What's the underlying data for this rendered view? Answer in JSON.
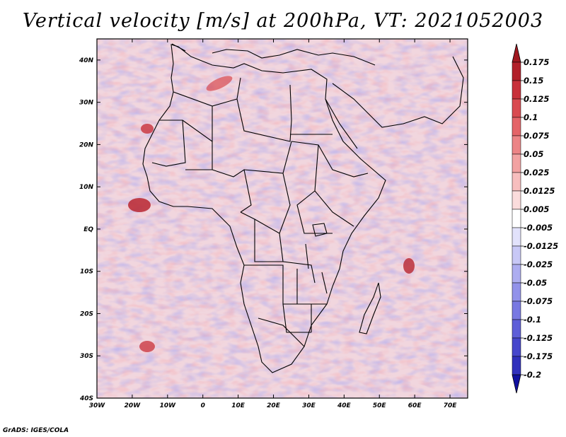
{
  "title": "Vertical velocity [m/s] at 200hPa, VT: 2021052003",
  "credit": "GrADS: IGES/COLA",
  "map": {
    "region": "Africa and surroundings",
    "projection": "lat-lon",
    "lon_range": [
      -30,
      75
    ],
    "lat_range": [
      -40,
      45
    ],
    "lat_ticks": [
      {
        "value": 40,
        "label": "40N"
      },
      {
        "value": 30,
        "label": "30N"
      },
      {
        "value": 20,
        "label": "20N"
      },
      {
        "value": 10,
        "label": "10N"
      },
      {
        "value": 0,
        "label": "EQ"
      },
      {
        "value": -10,
        "label": "10S"
      },
      {
        "value": -20,
        "label": "20S"
      },
      {
        "value": -30,
        "label": "30S"
      },
      {
        "value": -40,
        "label": "40S"
      }
    ],
    "lon_ticks": [
      {
        "value": -30,
        "label": "30W"
      },
      {
        "value": -20,
        "label": "20W"
      },
      {
        "value": -10,
        "label": "10W"
      },
      {
        "value": 0,
        "label": "0"
      },
      {
        "value": 10,
        "label": "10E"
      },
      {
        "value": 20,
        "label": "20E"
      },
      {
        "value": 30,
        "label": "30E"
      },
      {
        "value": 40,
        "label": "40E"
      },
      {
        "value": 50,
        "label": "50E"
      },
      {
        "value": 60,
        "label": "60E"
      },
      {
        "value": 70,
        "label": "70E"
      }
    ]
  },
  "colorbar": {
    "levels": [
      {
        "label": "0.175",
        "color": "#b2202a"
      },
      {
        "label": "0.15",
        "color": "#c8303a"
      },
      {
        "label": "0.125",
        "color": "#d94a50"
      },
      {
        "label": "0.1",
        "color": "#e46468"
      },
      {
        "label": "0.075",
        "color": "#ec8486"
      },
      {
        "label": "0.05",
        "color": "#f2a2a2"
      },
      {
        "label": "0.025",
        "color": "#f7bebe"
      },
      {
        "label": "0.0125",
        "color": "#fbdcdc"
      },
      {
        "label": "0.005",
        "color": "#ffffff"
      },
      {
        "label": "-0.005",
        "color": "#e2e2fb"
      },
      {
        "label": "-0.0125",
        "color": "#c8c8f6"
      },
      {
        "label": "-0.025",
        "color": "#adadf0"
      },
      {
        "label": "-0.05",
        "color": "#9292ea"
      },
      {
        "label": "-0.075",
        "color": "#7878e2"
      },
      {
        "label": "-0.1",
        "color": "#5e5ed8"
      },
      {
        "label": "-0.125",
        "color": "#4646cc"
      },
      {
        "label": "-0.175",
        "color": "#3030bc"
      },
      {
        "label": "-0.2",
        "color": "#1c1ca8"
      }
    ],
    "top_color": "#a01820",
    "bottom_color": "#1010a0"
  }
}
